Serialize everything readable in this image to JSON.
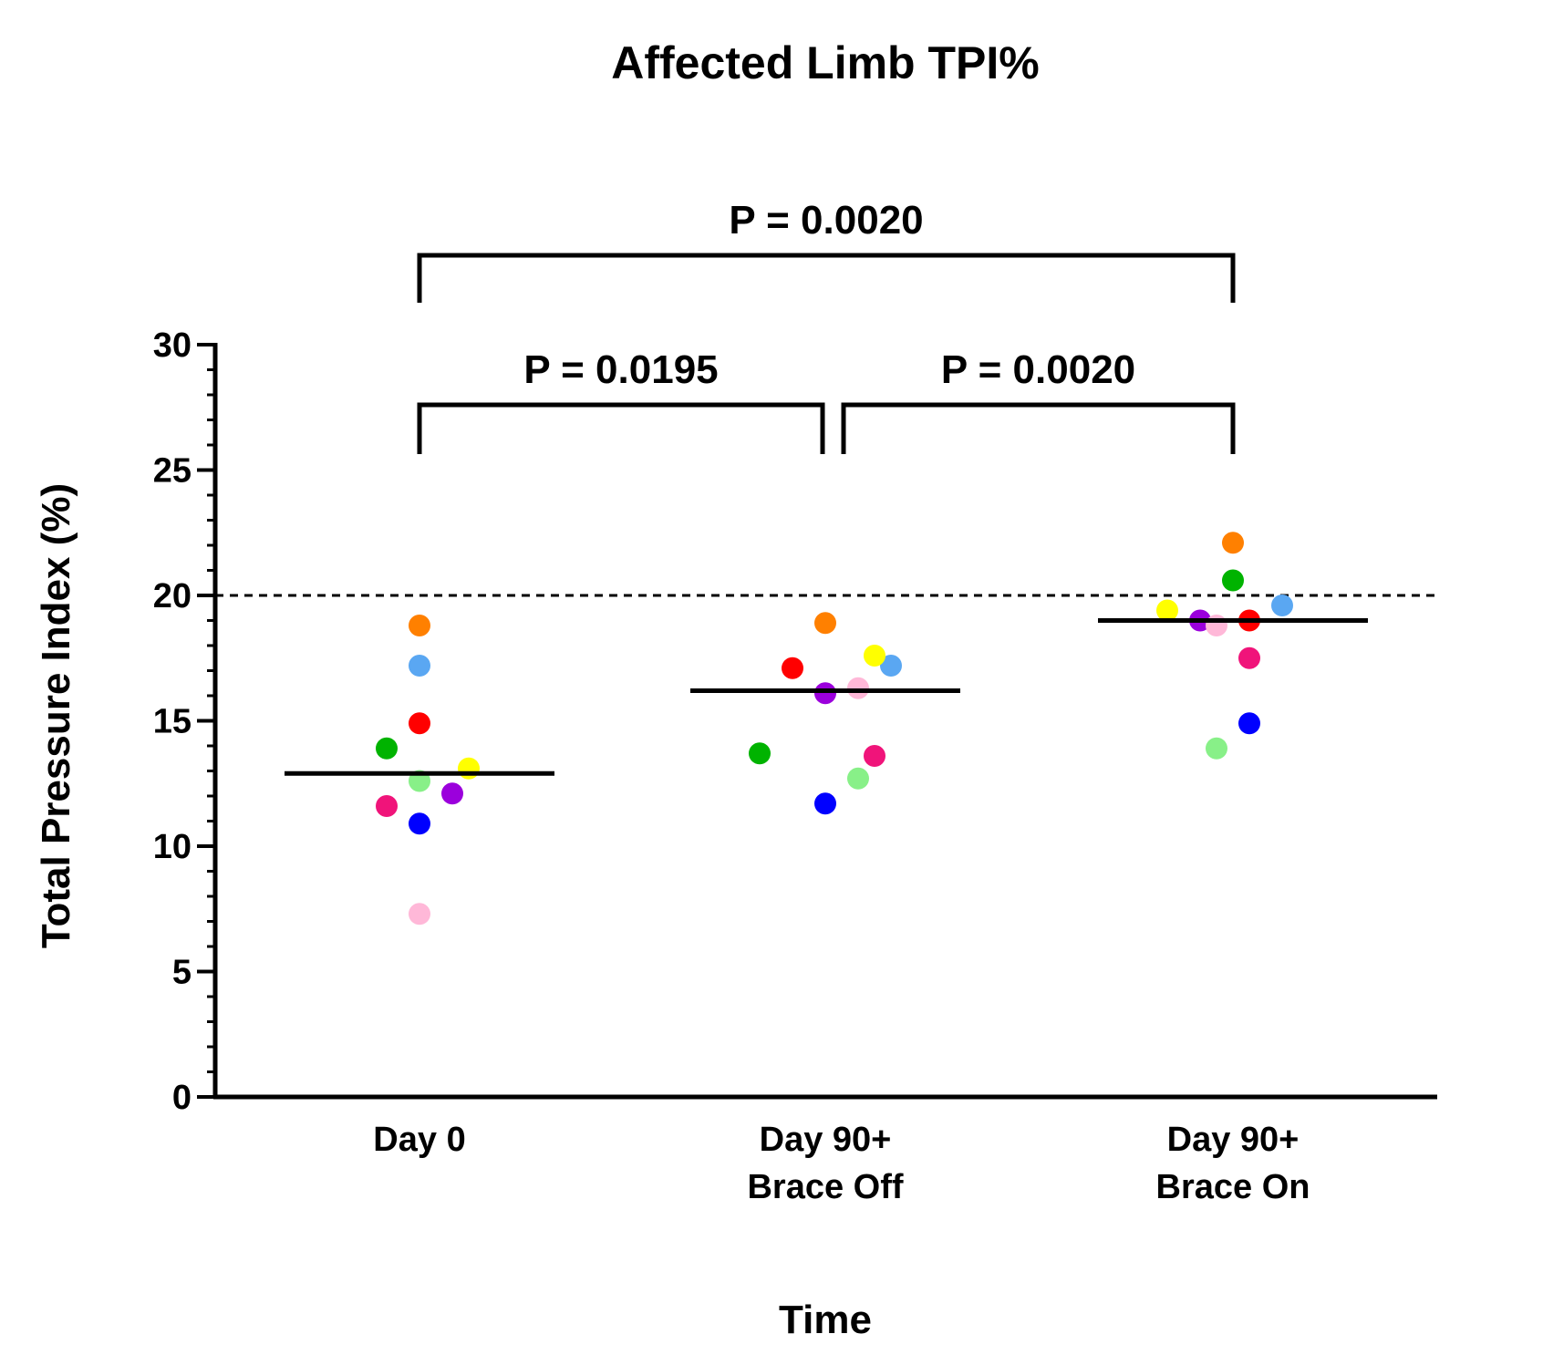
{
  "chart_data": {
    "type": "scatter",
    "title": "Affected Limb TPI%",
    "xlabel": "Time",
    "ylabel": "Total Pressure Index (%)",
    "ylim": [
      0,
      30
    ],
    "yticks": [
      0,
      5,
      10,
      15,
      20,
      25,
      30
    ],
    "reference_line": {
      "value": 20,
      "style": "dashed"
    },
    "categories": [
      {
        "key": "day0",
        "lines": [
          "Day 0"
        ]
      },
      {
        "key": "off",
        "lines": [
          "Day 90+",
          "Brace Off"
        ]
      },
      {
        "key": "on",
        "lines": [
          "Day 90+",
          "Brace On"
        ]
      }
    ],
    "medians": [
      12.9,
      16.2,
      19.0
    ],
    "subjects": [
      {
        "color": "#ff8000",
        "values": [
          18.8,
          18.9,
          22.1
        ]
      },
      {
        "color": "#5aa7f2",
        "values": [
          17.2,
          17.2,
          19.6
        ]
      },
      {
        "color": "#ff0000",
        "values": [
          14.9,
          17.1,
          19.0
        ]
      },
      {
        "color": "#00b300",
        "values": [
          13.9,
          13.7,
          20.6
        ]
      },
      {
        "color": "#ffff00",
        "values": [
          13.1,
          17.6,
          19.4
        ]
      },
      {
        "color": "#88f088",
        "values": [
          12.6,
          12.7,
          13.9
        ]
      },
      {
        "color": "#9b00dc",
        "values": [
          12.1,
          16.1,
          19.0
        ]
      },
      {
        "color": "#f0147a",
        "values": [
          11.6,
          13.6,
          17.5
        ]
      },
      {
        "color": "#0000ff",
        "values": [
          10.9,
          11.7,
          14.9
        ]
      },
      {
        "color": "#ffb8d8",
        "values": [
          7.3,
          16.3,
          18.8
        ]
      }
    ],
    "comparisons": [
      {
        "from": 0,
        "to": 2,
        "label": "P = 0.0020",
        "level": "top"
      },
      {
        "from": 0,
        "to": 1,
        "label": "P = 0.0195",
        "level": "low"
      },
      {
        "from": 1,
        "to": 2,
        "label": "P = 0.0020",
        "level": "low"
      }
    ]
  }
}
